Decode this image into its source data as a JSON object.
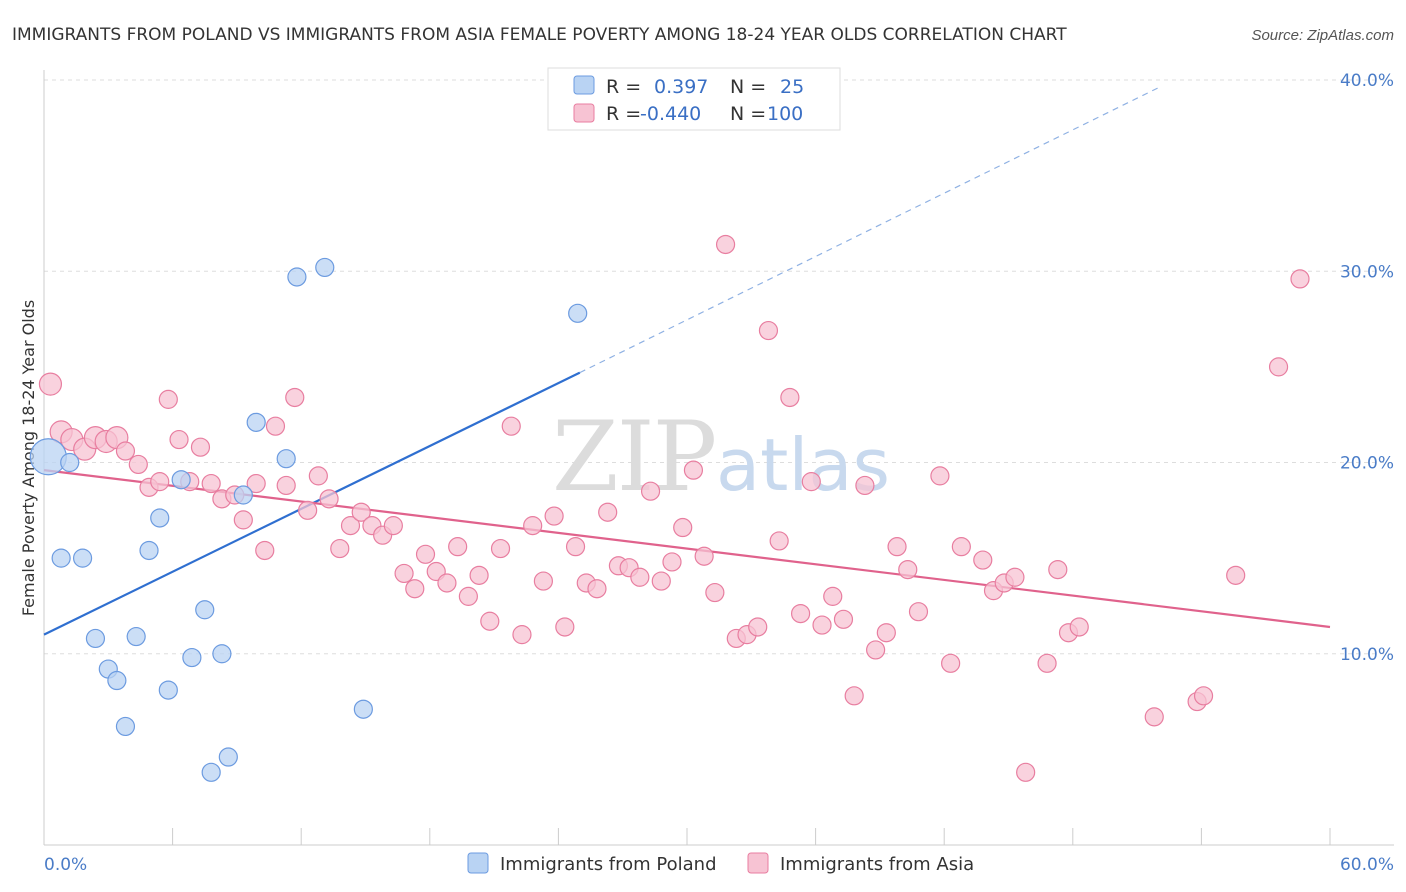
{
  "chart_data": {
    "type": "scatter",
    "title": "IMMIGRANTS FROM POLAND VS IMMIGRANTS FROM ASIA FEMALE POVERTY AMONG 18-24 YEAR OLDS CORRELATION CHART",
    "source": "Source: ZipAtlas.com",
    "ylabel": "Female Poverty Among 18-24 Year Olds",
    "xlim": [
      0,
      60
    ],
    "ylim": [
      0,
      40
    ],
    "x_tick_labels": [
      "0.0%",
      "60.0%"
    ],
    "y_tick_labels": [
      "10.0%",
      "20.0%",
      "30.0%",
      "40.0%"
    ],
    "y_ticks": [
      10,
      20,
      30,
      40
    ],
    "grid": true,
    "watermark": {
      "zip": "ZIP",
      "atlas": "atlas"
    },
    "legend": {
      "placement": "top-center",
      "rows": [
        {
          "r_label": "R =",
          "r_value": "0.397",
          "n_label": "N =",
          "n_value": "25"
        },
        {
          "r_label": "R =",
          "r_value": "-0.440",
          "n_label": "N =",
          "n_value": "100"
        }
      ]
    },
    "series": [
      {
        "name": "Immigrants from Poland",
        "color": "#6c9be0",
        "fill": "#b9d3f3",
        "trend": {
          "x0": 0,
          "y0": 11.0,
          "x1": 25,
          "y1": 24.7,
          "dash_x1": 52,
          "dash_y1": 39.6
        },
        "points": [
          [
            0.2,
            20.3,
            18
          ],
          [
            1.2,
            20.0,
            9
          ],
          [
            0.8,
            15.0,
            9
          ],
          [
            1.8,
            15.0,
            9
          ],
          [
            2.4,
            10.8,
            9
          ],
          [
            3.0,
            9.2,
            9
          ],
          [
            3.4,
            8.6,
            9
          ],
          [
            3.8,
            6.2,
            9
          ],
          [
            4.3,
            10.9,
            9
          ],
          [
            4.9,
            15.4,
            9
          ],
          [
            5.4,
            17.1,
            9
          ],
          [
            5.8,
            8.1,
            9
          ],
          [
            6.4,
            19.1,
            9
          ],
          [
            6.9,
            9.8,
            9
          ],
          [
            7.5,
            12.3,
            9
          ],
          [
            7.8,
            3.8,
            9
          ],
          [
            8.3,
            10.0,
            9
          ],
          [
            8.6,
            4.6,
            9
          ],
          [
            9.3,
            18.3,
            9
          ],
          [
            9.9,
            22.1,
            9
          ],
          [
            11.3,
            20.2,
            9
          ],
          [
            11.8,
            29.7,
            9
          ],
          [
            13.1,
            30.2,
            9
          ],
          [
            14.9,
            7.1,
            9
          ],
          [
            24.9,
            27.8,
            9
          ]
        ]
      },
      {
        "name": "Immigrants from Asia",
        "color": "#e87ea0",
        "fill": "#f7c3d3",
        "trend": {
          "x0": 0,
          "y0": 19.6,
          "x1": 60,
          "y1": 11.4
        },
        "points": [
          [
            0.3,
            24.1,
            11
          ],
          [
            0.8,
            21.6,
            11
          ],
          [
            1.3,
            21.2,
            11
          ],
          [
            1.9,
            20.7,
            11
          ],
          [
            2.4,
            21.3,
            11
          ],
          [
            2.9,
            21.1,
            11
          ],
          [
            3.4,
            21.3,
            11
          ],
          [
            3.8,
            20.6,
            9
          ],
          [
            4.4,
            19.9,
            9
          ],
          [
            4.9,
            18.7,
            9
          ],
          [
            5.4,
            19.0,
            9
          ],
          [
            5.8,
            23.3,
            9
          ],
          [
            6.3,
            21.2,
            9
          ],
          [
            6.8,
            19.0,
            9
          ],
          [
            7.3,
            20.8,
            9
          ],
          [
            7.8,
            18.9,
            9
          ],
          [
            8.3,
            18.1,
            9
          ],
          [
            8.9,
            18.3,
            9
          ],
          [
            9.3,
            17.0,
            9
          ],
          [
            9.9,
            18.9,
            9
          ],
          [
            10.3,
            15.4,
            9
          ],
          [
            10.8,
            21.9,
            9
          ],
          [
            11.3,
            18.8,
            9
          ],
          [
            11.7,
            23.4,
            9
          ],
          [
            12.3,
            17.5,
            9
          ],
          [
            12.8,
            19.3,
            9
          ],
          [
            13.3,
            18.1,
            9
          ],
          [
            13.8,
            15.5,
            9
          ],
          [
            14.3,
            16.7,
            9
          ],
          [
            14.8,
            17.4,
            9
          ],
          [
            15.3,
            16.7,
            9
          ],
          [
            15.8,
            16.2,
            9
          ],
          [
            16.3,
            16.7,
            9
          ],
          [
            16.8,
            14.2,
            9
          ],
          [
            17.3,
            13.4,
            9
          ],
          [
            17.8,
            15.2,
            9
          ],
          [
            18.3,
            14.3,
            9
          ],
          [
            18.8,
            13.7,
            9
          ],
          [
            19.3,
            15.6,
            9
          ],
          [
            19.8,
            13.0,
            9
          ],
          [
            20.3,
            14.1,
            9
          ],
          [
            20.8,
            11.7,
            9
          ],
          [
            21.3,
            15.5,
            9
          ],
          [
            21.8,
            21.9,
            9
          ],
          [
            22.3,
            11.0,
            9
          ],
          [
            22.8,
            16.7,
            9
          ],
          [
            23.3,
            13.8,
            9
          ],
          [
            23.8,
            17.2,
            9
          ],
          [
            24.3,
            11.4,
            9
          ],
          [
            24.8,
            15.6,
            9
          ],
          [
            25.3,
            13.7,
            9
          ],
          [
            25.8,
            13.4,
            9
          ],
          [
            26.3,
            17.4,
            9
          ],
          [
            26.8,
            14.6,
            9
          ],
          [
            27.3,
            14.5,
            9
          ],
          [
            27.8,
            14.0,
            9
          ],
          [
            28.3,
            18.5,
            9
          ],
          [
            28.8,
            13.8,
            9
          ],
          [
            29.3,
            14.8,
            9
          ],
          [
            29.8,
            16.6,
            9
          ],
          [
            30.3,
            19.6,
            9
          ],
          [
            30.8,
            15.1,
            9
          ],
          [
            31.3,
            13.2,
            9
          ],
          [
            31.8,
            31.4,
            9
          ],
          [
            32.3,
            10.8,
            9
          ],
          [
            32.8,
            11.0,
            9
          ],
          [
            33.3,
            11.4,
            9
          ],
          [
            33.8,
            26.9,
            9
          ],
          [
            34.3,
            15.9,
            9
          ],
          [
            34.8,
            23.4,
            9
          ],
          [
            35.3,
            12.1,
            9
          ],
          [
            35.8,
            19.0,
            9
          ],
          [
            36.3,
            11.5,
            9
          ],
          [
            36.8,
            13.0,
            9
          ],
          [
            37.3,
            11.8,
            9
          ],
          [
            37.8,
            7.8,
            9
          ],
          [
            38.3,
            18.8,
            9
          ],
          [
            38.8,
            10.2,
            9
          ],
          [
            39.3,
            11.1,
            9
          ],
          [
            39.8,
            15.6,
            9
          ],
          [
            40.3,
            14.4,
            9
          ],
          [
            40.8,
            12.2,
            9
          ],
          [
            41.8,
            19.3,
            9
          ],
          [
            42.3,
            9.5,
            9
          ],
          [
            42.8,
            15.6,
            9
          ],
          [
            43.8,
            14.9,
            9
          ],
          [
            44.3,
            13.3,
            9
          ],
          [
            44.8,
            13.7,
            9
          ],
          [
            45.3,
            14.0,
            9
          ],
          [
            45.8,
            3.8,
            9
          ],
          [
            46.8,
            9.5,
            9
          ],
          [
            47.3,
            14.4,
            9
          ],
          [
            47.8,
            11.1,
            9
          ],
          [
            48.3,
            11.4,
            9
          ],
          [
            51.8,
            6.7,
            9
          ],
          [
            53.8,
            7.5,
            9
          ],
          [
            54.1,
            7.8,
            9
          ],
          [
            55.6,
            14.1,
            9
          ],
          [
            57.6,
            25.0,
            9
          ],
          [
            58.6,
            29.6,
            9
          ]
        ]
      }
    ]
  }
}
